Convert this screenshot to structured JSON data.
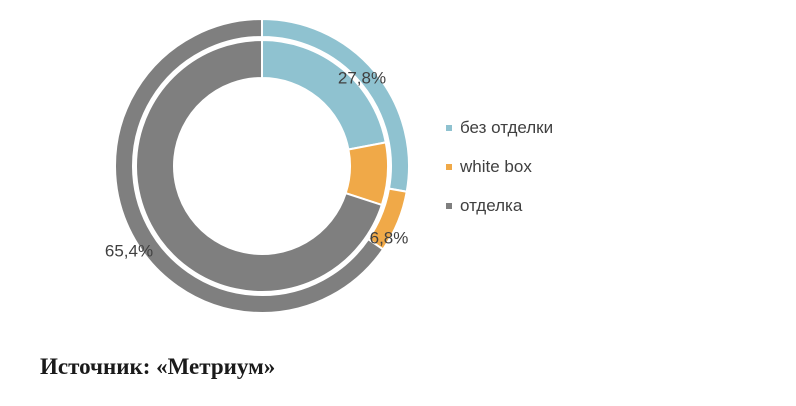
{
  "chart_data": {
    "type": "donut",
    "legend_position": "right",
    "categories": [
      "без отделки",
      "white box",
      "отделка"
    ],
    "colors": [
      "#8fc2d0",
      "#f0a948",
      "#7f7f7f"
    ],
    "rings": [
      {
        "ring": "outer",
        "values": [
          27.8,
          6.8,
          65.4
        ],
        "labels": [
          "27,8%",
          "6,8%",
          "65,4%"
        ]
      },
      {
        "ring": "inner",
        "values": [
          22.0,
          8.0,
          70.0
        ]
      }
    ]
  },
  "source": "Источник: «Метриум»"
}
